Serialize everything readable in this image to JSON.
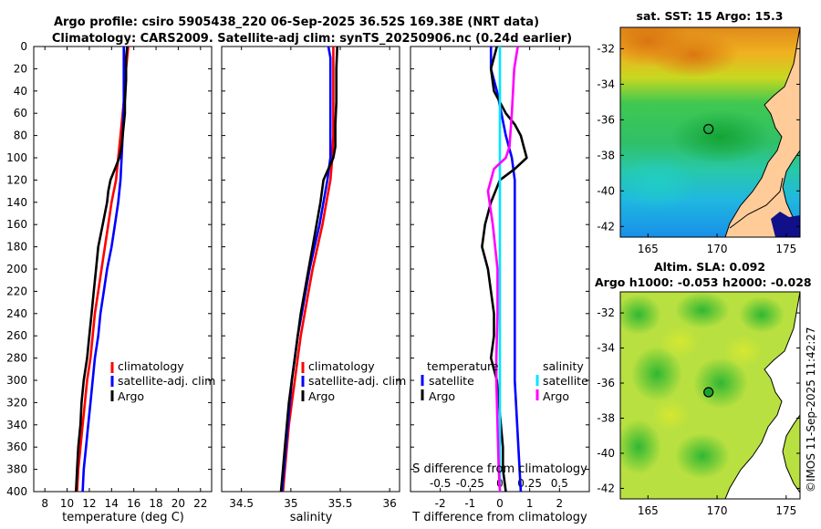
{
  "title_line1": "Argo profile: csiro 5905438_220 06-Sep-2025 36.52S 169.38E (NRT data)",
  "title_line2": "Climatology: CARS2009. Satellite-adj clim: synTS_20250906.nc (0.24d earlier)",
  "credit": "©IMOS 11-Sep-2025 11:42:27",
  "colors": {
    "climatology": "#ff0000",
    "satellite": "#0000ff",
    "argo": "#000000",
    "sal_satellite": "#00e5ff",
    "sal_argo": "#ff00ff"
  },
  "chart_data": [
    {
      "type": "line",
      "name": "temperature profile",
      "xlabel": "temperature (deg C)",
      "xlim": [
        7,
        23
      ],
      "ylim": [
        400,
        0
      ],
      "xticks": [
        "8",
        "10",
        "12",
        "14",
        "16",
        "18",
        "20",
        "22"
      ],
      "yticks": [
        "0",
        "20",
        "40",
        "60",
        "80",
        "100",
        "120",
        "140",
        "160",
        "180",
        "200",
        "220",
        "240",
        "260",
        "280",
        "300",
        "320",
        "340",
        "360",
        "380",
        "400"
      ],
      "legend": [
        "climatology",
        "satellite-adj. clim",
        "Argo"
      ],
      "series": [
        {
          "name": "climatology",
          "color": "#ff0000",
          "points": [
            [
              15.5,
              0
            ],
            [
              15.3,
              20
            ],
            [
              15.1,
              50
            ],
            [
              14.8,
              80
            ],
            [
              14.6,
              100
            ],
            [
              14.4,
              120
            ],
            [
              14.0,
              140
            ],
            [
              13.7,
              160
            ],
            [
              13.4,
              180
            ],
            [
              13.1,
              200
            ],
            [
              12.8,
              220
            ],
            [
              12.5,
              240
            ],
            [
              12.3,
              260
            ],
            [
              12.1,
              280
            ],
            [
              11.8,
              300
            ],
            [
              11.6,
              320
            ],
            [
              11.4,
              340
            ],
            [
              11.2,
              360
            ],
            [
              11.0,
              380
            ],
            [
              10.9,
              400
            ]
          ]
        },
        {
          "name": "satellite-adj. clim",
          "color": "#0000ff",
          "points": [
            [
              15.1,
              0
            ],
            [
              15.1,
              20
            ],
            [
              15.1,
              50
            ],
            [
              15.0,
              80
            ],
            [
              14.9,
              100
            ],
            [
              14.8,
              120
            ],
            [
              14.6,
              140
            ],
            [
              14.3,
              160
            ],
            [
              14.0,
              180
            ],
            [
              13.6,
              200
            ],
            [
              13.3,
              220
            ],
            [
              13.0,
              240
            ],
            [
              12.8,
              260
            ],
            [
              12.5,
              280
            ],
            [
              12.3,
              300
            ],
            [
              12.1,
              320
            ],
            [
              11.9,
              340
            ],
            [
              11.7,
              360
            ],
            [
              11.5,
              380
            ],
            [
              11.4,
              400
            ]
          ]
        },
        {
          "name": "Argo",
          "color": "#000000",
          "points": [
            [
              15.4,
              0
            ],
            [
              15.3,
              10
            ],
            [
              15.3,
              30
            ],
            [
              15.2,
              50
            ],
            [
              15.2,
              60
            ],
            [
              15.1,
              70
            ],
            [
              15.0,
              80
            ],
            [
              14.9,
              90
            ],
            [
              14.7,
              100
            ],
            [
              14.3,
              110
            ],
            [
              13.9,
              120
            ],
            [
              13.7,
              130
            ],
            [
              13.6,
              140
            ],
            [
              13.2,
              160
            ],
            [
              12.8,
              180
            ],
            [
              12.6,
              200
            ],
            [
              12.4,
              220
            ],
            [
              12.2,
              240
            ],
            [
              12.0,
              260
            ],
            [
              11.8,
              280
            ],
            [
              11.5,
              300
            ],
            [
              11.3,
              320
            ],
            [
              11.2,
              340
            ],
            [
              11.0,
              360
            ],
            [
              10.9,
              380
            ],
            [
              10.8,
              400
            ]
          ]
        }
      ]
    },
    {
      "type": "line",
      "name": "salinity profile",
      "xlabel": "salinity",
      "xlim": [
        34.3,
        36.1
      ],
      "ylim": [
        400,
        0
      ],
      "xticks": [
        "34.5",
        "35",
        "35.5",
        "36"
      ],
      "legend": [
        "climatology",
        "satellite-adj. clim",
        "Argo"
      ],
      "series": [
        {
          "name": "climatology",
          "color": "#ff0000",
          "points": [
            [
              35.43,
              0
            ],
            [
              35.43,
              40
            ],
            [
              35.43,
              80
            ],
            [
              35.42,
              100
            ],
            [
              35.4,
              120
            ],
            [
              35.36,
              140
            ],
            [
              35.32,
              160
            ],
            [
              35.27,
              180
            ],
            [
              35.22,
              200
            ],
            [
              35.18,
              220
            ],
            [
              35.14,
              240
            ],
            [
              35.1,
              260
            ],
            [
              35.07,
              280
            ],
            [
              35.04,
              300
            ],
            [
              35.01,
              320
            ],
            [
              34.98,
              340
            ],
            [
              34.96,
              360
            ],
            [
              34.94,
              380
            ],
            [
              34.92,
              400
            ]
          ]
        },
        {
          "name": "satellite-adj. clim",
          "color": "#0000ff",
          "points": [
            [
              35.38,
              0
            ],
            [
              35.4,
              10
            ],
            [
              35.4,
              40
            ],
            [
              35.4,
              80
            ],
            [
              35.4,
              100
            ],
            [
              35.37,
              120
            ],
            [
              35.33,
              140
            ],
            [
              35.29,
              160
            ],
            [
              35.24,
              180
            ],
            [
              35.19,
              200
            ],
            [
              35.15,
              220
            ],
            [
              35.11,
              240
            ],
            [
              35.07,
              260
            ],
            [
              35.04,
              280
            ],
            [
              35.01,
              300
            ],
            [
              34.99,
              320
            ],
            [
              34.97,
              340
            ],
            [
              34.95,
              360
            ],
            [
              34.93,
              380
            ],
            [
              34.91,
              400
            ]
          ]
        },
        {
          "name": "Argo",
          "color": "#000000",
          "points": [
            [
              35.47,
              0
            ],
            [
              35.46,
              20
            ],
            [
              35.46,
              50
            ],
            [
              35.45,
              70
            ],
            [
              35.45,
              90
            ],
            [
              35.43,
              100
            ],
            [
              35.38,
              110
            ],
            [
              35.33,
              120
            ],
            [
              35.3,
              140
            ],
            [
              35.26,
              160
            ],
            [
              35.22,
              180
            ],
            [
              35.18,
              200
            ],
            [
              35.14,
              220
            ],
            [
              35.1,
              240
            ],
            [
              35.07,
              260
            ],
            [
              35.04,
              280
            ],
            [
              35.01,
              300
            ],
            [
              34.98,
              320
            ],
            [
              34.96,
              340
            ],
            [
              34.94,
              360
            ],
            [
              34.92,
              380
            ],
            [
              34.9,
              400
            ]
          ]
        }
      ]
    },
    {
      "type": "line",
      "name": "difference from climatology",
      "xlabel": "T difference from climatology",
      "top_label": "S difference from climatology",
      "xlim": [
        -3,
        3
      ],
      "ylim": [
        400,
        0
      ],
      "xticks": [
        "-2",
        "-1",
        "0",
        "1",
        "2"
      ],
      "top_ticks": [
        "-0.5",
        "-0.25",
        "0",
        "0.25",
        "0.5"
      ],
      "legend_titles": [
        "temperature",
        "salinity"
      ],
      "legend_left": [
        "satellite",
        "Argo"
      ],
      "legend_right": [
        "satellite",
        "Argo"
      ],
      "series": [
        {
          "name": "temperature satellite",
          "color": "#0000ff",
          "points": [
            [
              -0.3,
              0
            ],
            [
              -0.3,
              20
            ],
            [
              -0.1,
              40
            ],
            [
              0.2,
              80
            ],
            [
              0.4,
              100
            ],
            [
              0.5,
              120
            ],
            [
              0.5,
              200
            ],
            [
              0.5,
              300
            ],
            [
              0.6,
              350
            ],
            [
              0.7,
              400
            ]
          ]
        },
        {
          "name": "temperature Argo",
          "color": "#000000",
          "points": [
            [
              -0.1,
              0
            ],
            [
              -0.3,
              20
            ],
            [
              -0.2,
              40
            ],
            [
              0.0,
              50
            ],
            [
              0.2,
              60
            ],
            [
              0.5,
              70
            ],
            [
              0.7,
              80
            ],
            [
              0.8,
              90
            ],
            [
              0.9,
              100
            ],
            [
              0.5,
              110
            ],
            [
              0.0,
              120
            ],
            [
              -0.3,
              140
            ],
            [
              -0.5,
              160
            ],
            [
              -0.6,
              180
            ],
            [
              -0.4,
              200
            ],
            [
              -0.3,
              220
            ],
            [
              -0.2,
              240
            ],
            [
              -0.2,
              260
            ],
            [
              -0.3,
              280
            ],
            [
              -0.1,
              300
            ],
            [
              0.0,
              330
            ],
            [
              0.1,
              360
            ],
            [
              0.1,
              380
            ],
            [
              0.2,
              400
            ]
          ]
        },
        {
          "name": "salinity satellite",
          "color": "#00e5ff",
          "points": [
            [
              0.0,
              0
            ],
            [
              0.0,
              100
            ],
            [
              0.0,
              200
            ],
            [
              0.0,
              300
            ],
            [
              0.0,
              400
            ]
          ]
        },
        {
          "name": "salinity Argo",
          "color": "#ff00ff",
          "points": [
            [
              0.15,
              0
            ],
            [
              0.12,
              20
            ],
            [
              0.1,
              60
            ],
            [
              0.08,
              90
            ],
            [
              0.05,
              100
            ],
            [
              -0.05,
              110
            ],
            [
              -0.1,
              130
            ],
            [
              -0.06,
              160
            ],
            [
              -0.02,
              200
            ],
            [
              -0.02,
              240
            ],
            [
              -0.03,
              280
            ],
            [
              -0.03,
              300
            ],
            [
              -0.02,
              340
            ],
            [
              -0.01,
              380
            ],
            [
              0.0,
              400
            ]
          ]
        }
      ]
    },
    {
      "type": "heatmap",
      "name": "satellite SST map",
      "title": "sat. SST: 15 Argo: 15.3",
      "xlim": [
        163,
        176
      ],
      "ylim": [
        -42.6,
        -30.8
      ],
      "xticks": [
        "165",
        "170",
        "175"
      ],
      "yticks": [
        "-32",
        "-34",
        "-36",
        "-38",
        "-40",
        "-42"
      ],
      "argo_marker": [
        169.38,
        -36.52
      ]
    },
    {
      "type": "heatmap",
      "name": "altimetry SLA map",
      "title1": "Altim. SLA: 0.092",
      "title2": "Argo h1000: -0.053 h2000: -0.028",
      "xlim": [
        163,
        176
      ],
      "ylim": [
        -42.6,
        -30.8
      ],
      "xticks": [
        "165",
        "170",
        "175"
      ],
      "yticks": [
        "-32",
        "-34",
        "-36",
        "-38",
        "-40",
        "-42"
      ],
      "argo_marker": [
        169.38,
        -36.52
      ]
    }
  ]
}
